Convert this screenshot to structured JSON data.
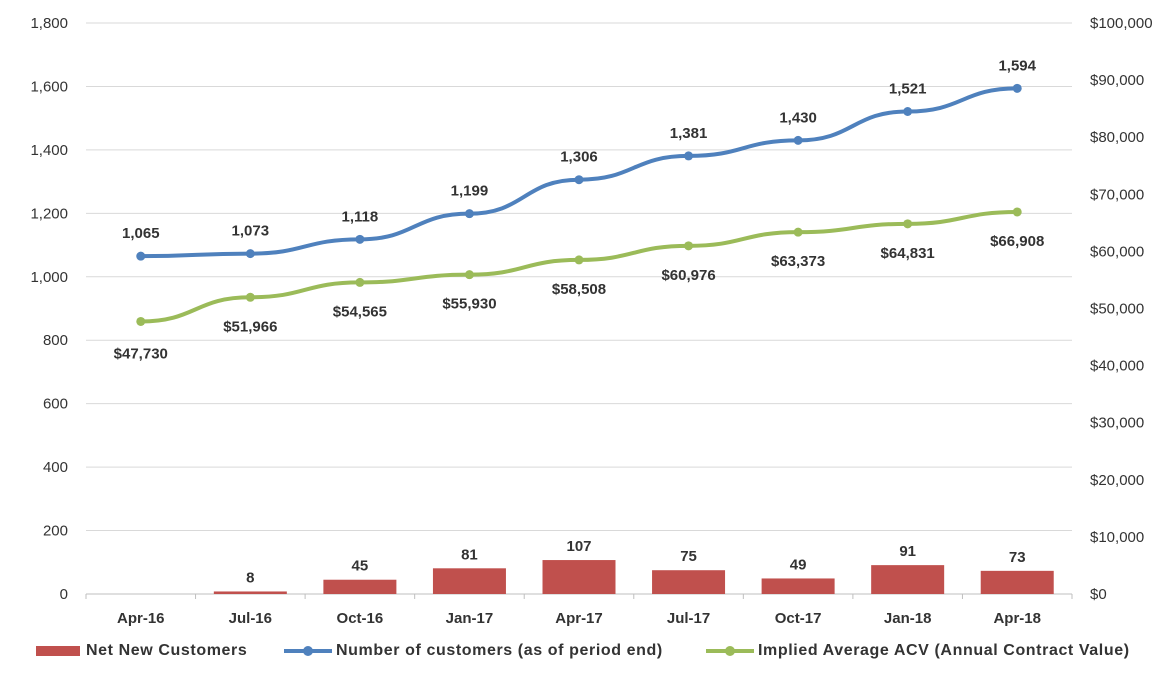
{
  "chart_data": {
    "type": "bar+line",
    "categories": [
      "Apr-16",
      "Jul-16",
      "Oct-16",
      "Jan-17",
      "Apr-17",
      "Jul-17",
      "Oct-17",
      "Jan-18",
      "Apr-18"
    ],
    "y_left": {
      "ylim": [
        0,
        1800
      ],
      "ticks": [
        "0",
        "200",
        "400",
        "600",
        "800",
        "1,000",
        "1,200",
        "1,400",
        "1,600",
        "1,800"
      ]
    },
    "y_right": {
      "ylim": [
        0,
        100000
      ],
      "ticks": [
        "$0",
        "$10,000",
        "$20,000",
        "$30,000",
        "$40,000",
        "$50,000",
        "$60,000",
        "$70,000",
        "$80,000",
        "$90,000",
        "$100,000"
      ]
    },
    "grid": "horizontal",
    "legend_position": "bottom",
    "series": [
      {
        "name": "Net New Customers",
        "type": "bar",
        "axis": "left",
        "color": "#c0504d",
        "values": [
          null,
          8,
          45,
          81,
          107,
          75,
          49,
          91,
          73
        ],
        "labels": [
          "",
          "8",
          "45",
          "81",
          "107",
          "75",
          "49",
          "91",
          "73"
        ]
      },
      {
        "name": "Number of customers (as of period end)",
        "type": "line",
        "axis": "left",
        "color": "#4f81bd",
        "values": [
          1065,
          1073,
          1118,
          1199,
          1306,
          1381,
          1430,
          1521,
          1594
        ],
        "labels": [
          "1,065",
          "1,073",
          "1,118",
          "1,199",
          "1,306",
          "1,381",
          "1,430",
          "1,521",
          "1,594"
        ]
      },
      {
        "name": "Implied Average ACV (Annual Contract Value)",
        "type": "line",
        "axis": "right",
        "color": "#9bbb59",
        "values": [
          47730,
          51966,
          54565,
          55930,
          58508,
          60976,
          63373,
          64831,
          66908
        ],
        "labels": [
          "$47,730",
          "$51,966",
          "$54,565",
          "$55,930",
          "$58,508",
          "$60,976",
          "$63,373",
          "$64,831",
          "$66,908"
        ]
      }
    ]
  }
}
